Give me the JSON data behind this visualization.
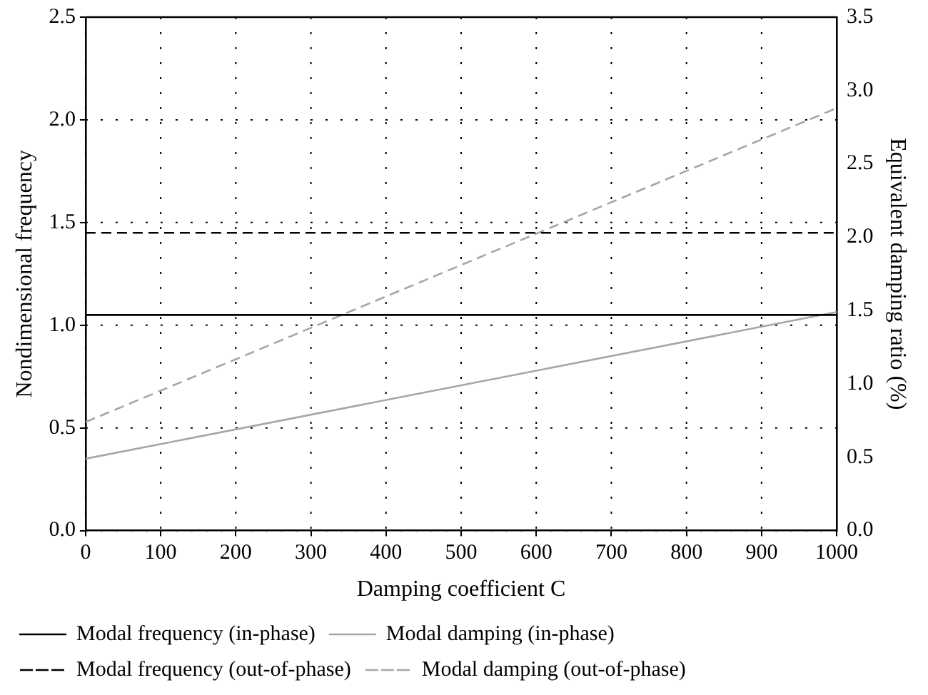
{
  "chart_data": {
    "type": "line",
    "xlabel": "Damping coefficient C",
    "ylabel": "Nondimensional frequency",
    "y2label": "Equivalent damping ratio (%)",
    "x": [
      0,
      500,
      1000
    ],
    "xlim": [
      0,
      1000
    ],
    "xticks": [
      0,
      100,
      200,
      300,
      400,
      500,
      600,
      700,
      800,
      900,
      1000
    ],
    "ylim": [
      0,
      2.5
    ],
    "yticks": [
      {
        "value": 0,
        "label": "0.0"
      },
      0.5,
      {
        "value": 1,
        "label": "1.0"
      },
      1.5,
      {
        "value": 2,
        "label": "2.0"
      },
      2.5
    ],
    "y2lim": [
      0,
      3.5
    ],
    "y2ticks": [
      {
        "value": 0,
        "label": "0.0"
      },
      0.5,
      {
        "value": 1,
        "label": "1.0"
      },
      1.5,
      {
        "value": 2,
        "label": "2.0"
      },
      2.5,
      {
        "value": 3,
        "label": "3.0"
      },
      3.5
    ],
    "grid": true,
    "legend": "bottom",
    "marker": "none",
    "series": [
      {
        "name": "Modal frequency (in-phase)",
        "color": "#000000",
        "line_style": "solid",
        "values": [
          1.05,
          1.05,
          1.05
        ]
      },
      {
        "name": "Modal damping (in-phase)",
        "color": "#a6a6a6",
        "line_style": "solid",
        "axis": "y2",
        "values": [
          0.49,
          0.99,
          1.49
        ]
      },
      {
        "name": "Modal frequency (out-of-phase)",
        "color": "#000000",
        "line_style": "dashed",
        "values": [
          1.45,
          1.45,
          1.45
        ]
      },
      {
        "name": "Modal damping (out-of-phase)",
        "color": "#a6a6a6",
        "line_style": "dashed",
        "axis": "y2",
        "values": [
          0.74,
          1.81,
          2.88
        ]
      }
    ]
  }
}
